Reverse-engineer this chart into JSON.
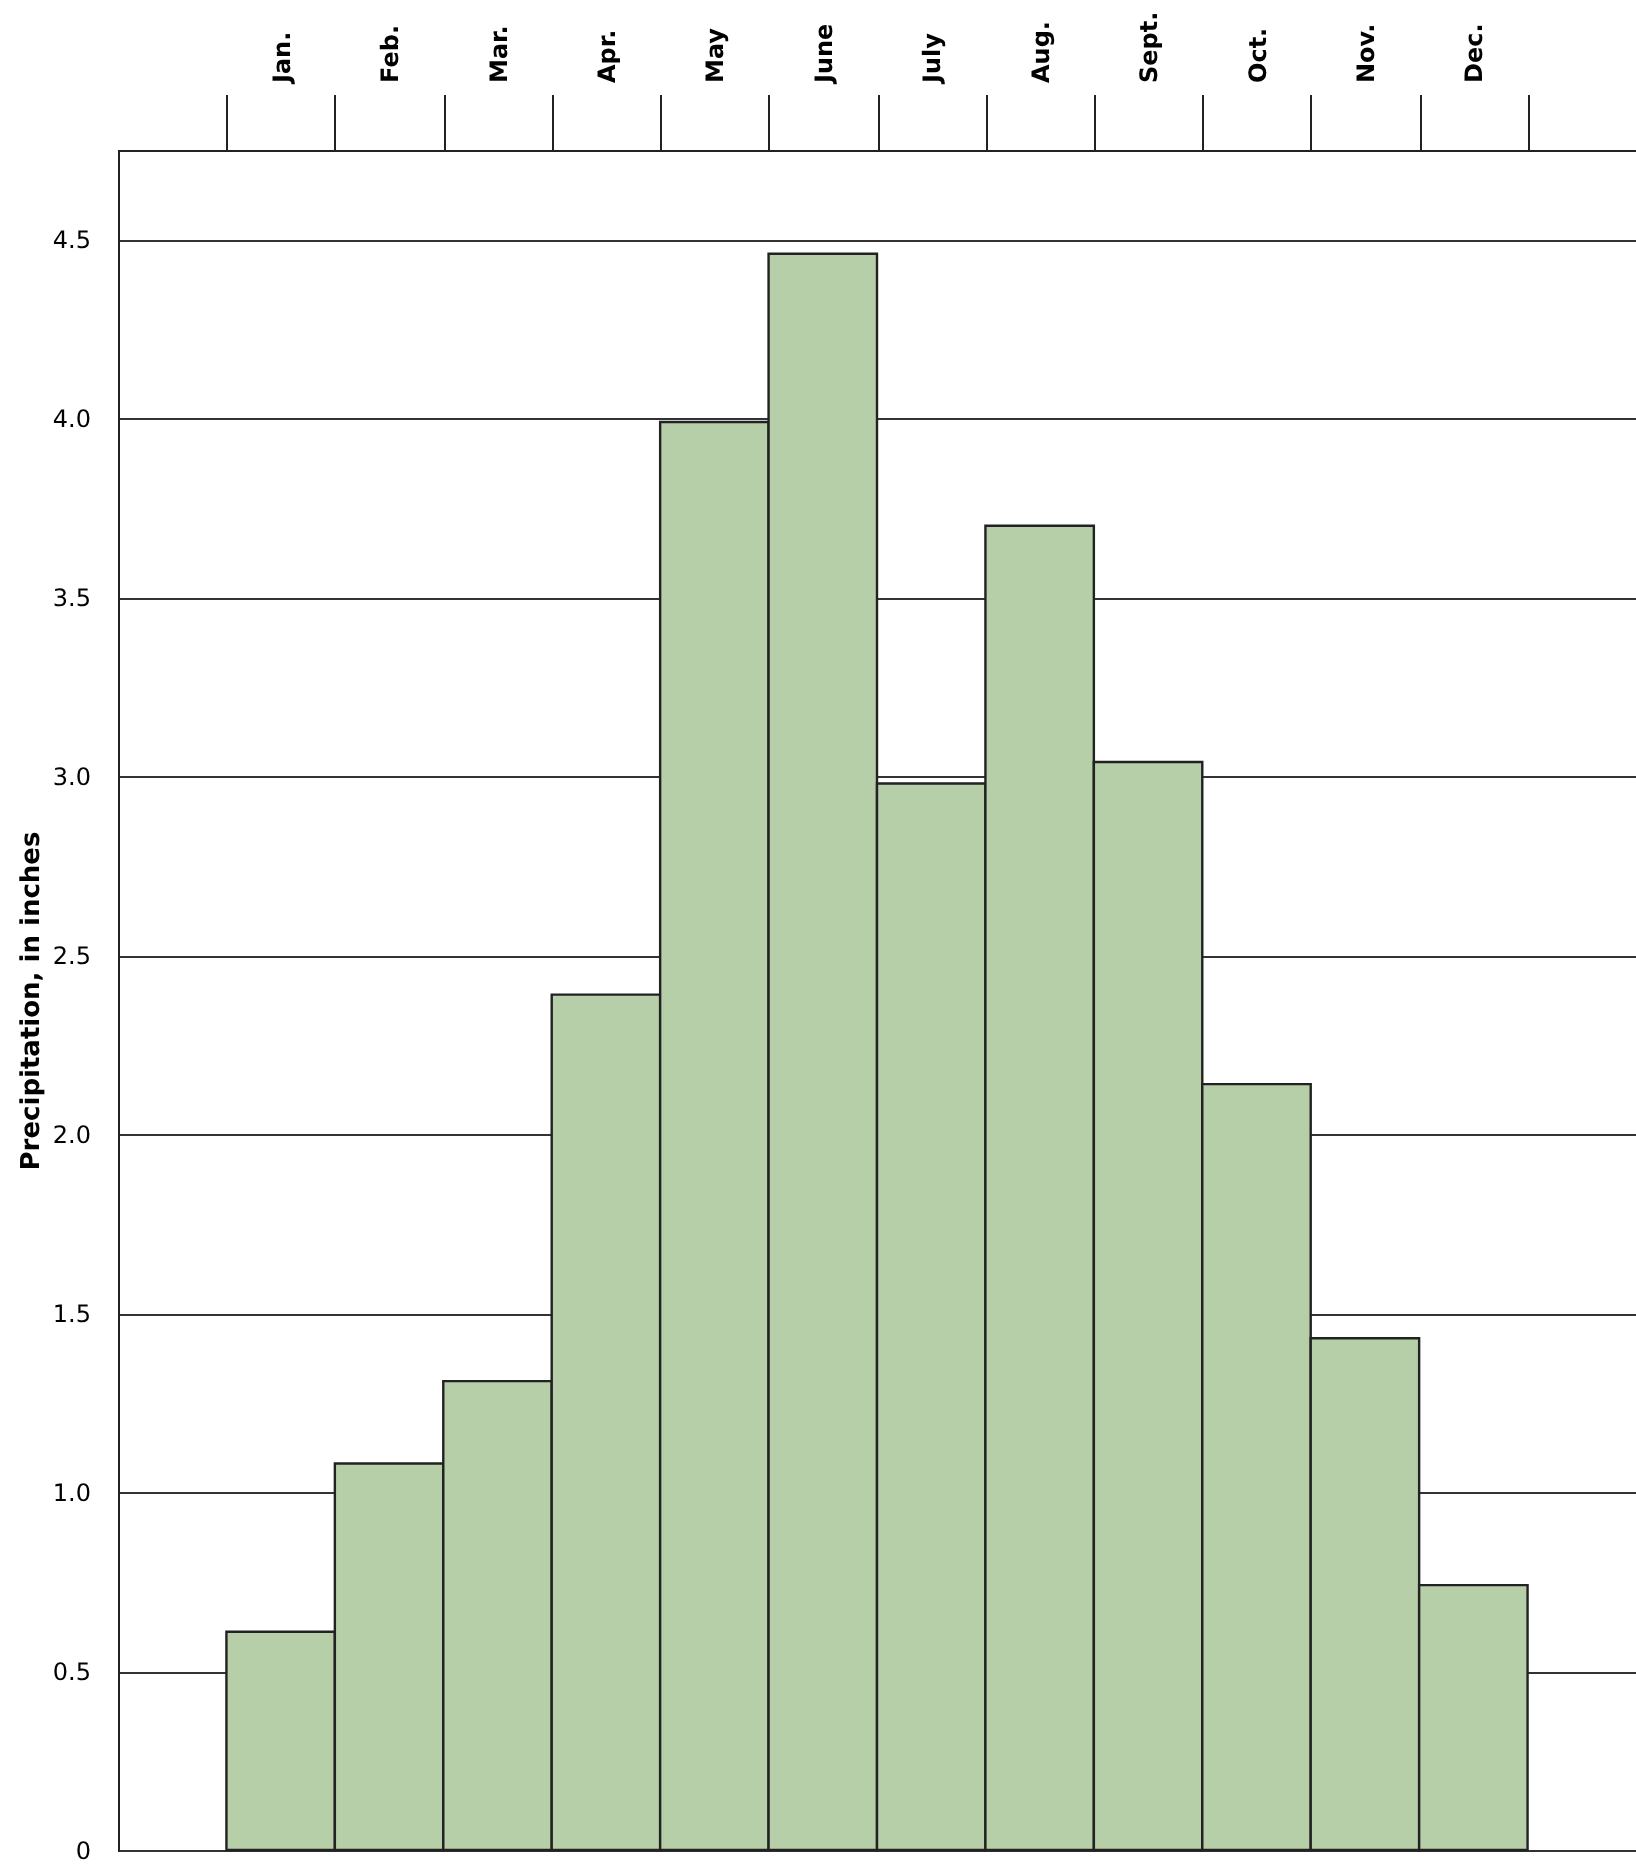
{
  "chart_data": {
    "type": "bar",
    "ylabel": "Precipitation, in inches",
    "categories": [
      "Jan.",
      "Feb.",
      "Mar.",
      "Apr.",
      "May",
      "June",
      "July",
      "Aug.",
      "Sept.",
      "Oct.",
      "Nov.",
      "Dec."
    ],
    "values": [
      0.61,
      1.08,
      1.31,
      2.39,
      3.99,
      4.46,
      2.98,
      3.7,
      3.04,
      2.14,
      1.43,
      0.74
    ],
    "color": "#b7cfa8",
    "ylim": [
      0,
      4.75
    ],
    "yticks": [
      0,
      0.5,
      {
        "value": 1,
        "label": "1.0"
      },
      1.5,
      {
        "value": 2,
        "label": "2.0"
      },
      2.5,
      {
        "value": 3,
        "label": "3.0"
      },
      3.5,
      {
        "value": 4,
        "label": "4.0"
      },
      4.5
    ],
    "grid": "y"
  }
}
